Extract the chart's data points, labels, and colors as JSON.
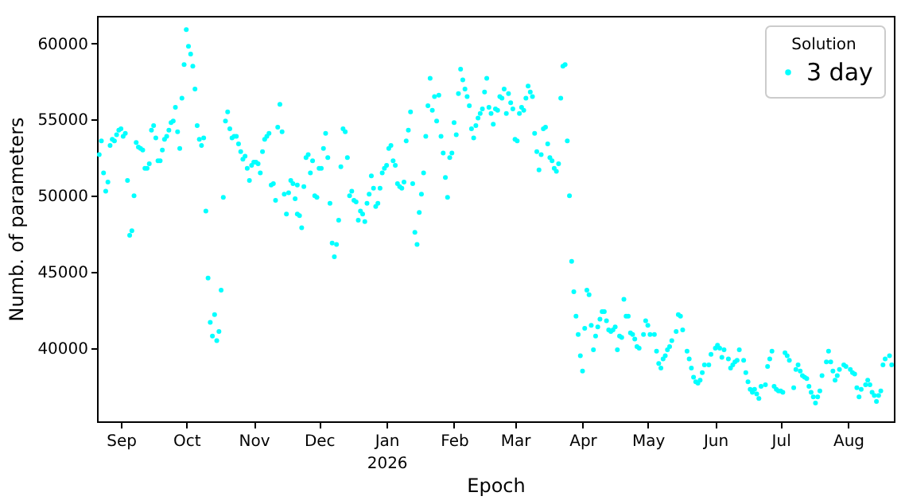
{
  "chart_data": {
    "type": "scatter",
    "xlabel": "Epoch",
    "ylabel": "Numb. of parameters",
    "legend_title": "Solution",
    "legend": "top right",
    "marker": "circle",
    "grid": false,
    "xlim": [
      "2025-08-21",
      "2026-08-22"
    ],
    "ylim": [
      35200,
      61800
    ],
    "xticks": [
      {
        "value": "2025-09-01",
        "label": "Sep"
      },
      {
        "value": "2025-10-01",
        "label": "Oct"
      },
      {
        "value": "2025-11-01",
        "label": "Nov"
      },
      {
        "value": "2025-12-01",
        "label": "Dec"
      },
      {
        "value": "2026-01-01",
        "label": "Jan\n2026"
      },
      {
        "value": "2026-02-01",
        "label": "Feb"
      },
      {
        "value": "2026-03-01",
        "label": "Mar"
      },
      {
        "value": "2026-04-01",
        "label": "Apr"
      },
      {
        "value": "2026-05-01",
        "label": "May"
      },
      {
        "value": "2026-06-01",
        "label": "Jun"
      },
      {
        "value": "2026-07-01",
        "label": "Jul"
      },
      {
        "value": "2026-08-01",
        "label": "Aug"
      }
    ],
    "yticks": [
      40000,
      45000,
      50000,
      55000,
      60000
    ],
    "series": [
      {
        "name": "3 day",
        "color": "#00ffff",
        "x": [
          "2025-08-22",
          "2025-08-23",
          "2025-08-24",
          "2025-08-25",
          "2025-08-26",
          "2025-08-27",
          "2025-08-28",
          "2025-08-29",
          "2025-08-30",
          "2025-08-31",
          "2025-09-01",
          "2025-09-02",
          "2025-09-03",
          "2025-09-04",
          "2025-09-05",
          "2025-09-06",
          "2025-09-07",
          "2025-09-08",
          "2025-09-09",
          "2025-09-10",
          "2025-09-11",
          "2025-09-12",
          "2025-09-13",
          "2025-09-14",
          "2025-09-15",
          "2025-09-16",
          "2025-09-17",
          "2025-09-18",
          "2025-09-19",
          "2025-09-20",
          "2025-09-21",
          "2025-09-22",
          "2025-09-23",
          "2025-09-24",
          "2025-09-25",
          "2025-09-26",
          "2025-09-27",
          "2025-09-28",
          "2025-09-29",
          "2025-09-30",
          "2025-10-01",
          "2025-10-02",
          "2025-10-03",
          "2025-10-04",
          "2025-10-05",
          "2025-10-06",
          "2025-10-07",
          "2025-10-08",
          "2025-10-09",
          "2025-10-10",
          "2025-10-11",
          "2025-10-12",
          "2025-10-13",
          "2025-10-14",
          "2025-10-15",
          "2025-10-16",
          "2025-10-17",
          "2025-10-18",
          "2025-10-19",
          "2025-10-20",
          "2025-10-21",
          "2025-10-22",
          "2025-10-23",
          "2025-10-24",
          "2025-10-25",
          "2025-10-26",
          "2025-10-27",
          "2025-10-28",
          "2025-10-29",
          "2025-10-30",
          "2025-10-31",
          "2025-11-01",
          "2025-11-02",
          "2025-11-03",
          "2025-11-04",
          "2025-11-05",
          "2025-11-06",
          "2025-11-07",
          "2025-11-08",
          "2025-11-09",
          "2025-11-10",
          "2025-11-11",
          "2025-11-12",
          "2025-11-13",
          "2025-11-14",
          "2025-11-15",
          "2025-11-16",
          "2025-11-17",
          "2025-11-18",
          "2025-11-19",
          "2025-11-20",
          "2025-11-21",
          "2025-11-21",
          "2025-11-22",
          "2025-11-23",
          "2025-11-24",
          "2025-11-25",
          "2025-11-26",
          "2025-11-27",
          "2025-11-28",
          "2025-11-29",
          "2025-11-30",
          "2025-12-01",
          "2025-12-02",
          "2025-12-03",
          "2025-12-04",
          "2025-12-05",
          "2025-12-06",
          "2025-12-07",
          "2025-12-08",
          "2025-12-09",
          "2025-12-10",
          "2025-12-11",
          "2025-12-12",
          "2025-12-13",
          "2025-12-14",
          "2025-12-15",
          "2025-12-16",
          "2025-12-17",
          "2025-12-18",
          "2025-12-19",
          "2025-12-20",
          "2025-12-21",
          "2025-12-22",
          "2025-12-23",
          "2025-12-24",
          "2025-12-25",
          "2025-12-26",
          "2025-12-27",
          "2025-12-28",
          "2025-12-29",
          "2025-12-30",
          "2025-12-31",
          "2026-01-01",
          "2026-01-02",
          "2026-01-03",
          "2026-01-04",
          "2026-01-05",
          "2026-01-06",
          "2026-01-07",
          "2026-01-08",
          "2026-01-09",
          "2026-01-10",
          "2026-01-11",
          "2026-01-12",
          "2026-01-13",
          "2026-01-14",
          "2026-01-15",
          "2026-01-16",
          "2026-01-17",
          "2026-01-18",
          "2026-01-19",
          "2026-01-20",
          "2026-01-21",
          "2026-01-22",
          "2026-01-23",
          "2026-01-24",
          "2026-01-25",
          "2026-01-26",
          "2026-01-27",
          "2026-01-28",
          "2026-01-29",
          "2026-01-30",
          "2026-01-31",
          "2026-02-01",
          "2026-02-02",
          "2026-02-03",
          "2026-02-04",
          "2026-02-05",
          "2026-02-06",
          "2026-02-07",
          "2026-02-08",
          "2026-02-09",
          "2026-02-10",
          "2026-02-11",
          "2026-02-12",
          "2026-02-13",
          "2026-02-14",
          "2026-02-15",
          "2026-02-16",
          "2026-02-17",
          "2026-02-18",
          "2026-02-19",
          "2026-02-20",
          "2026-02-21",
          "2026-02-22",
          "2026-02-23",
          "2026-02-24",
          "2026-02-25",
          "2026-02-26",
          "2026-02-27",
          "2026-02-28",
          "2026-03-01",
          "2026-03-02",
          "2026-03-03",
          "2026-03-04",
          "2026-03-05",
          "2026-03-06",
          "2026-03-07",
          "2026-03-08",
          "2026-03-09",
          "2026-03-10",
          "2026-03-11",
          "2026-03-12",
          "2026-03-13",
          "2026-03-14",
          "2026-03-15",
          "2026-03-16",
          "2026-03-17",
          "2026-03-18",
          "2026-03-19",
          "2026-03-20",
          "2026-03-21",
          "2026-03-22",
          "2026-03-23",
          "2026-03-24",
          "2026-03-25",
          "2026-03-26",
          "2026-03-27",
          "2026-03-28",
          "2026-03-29",
          "2026-03-30",
          "2026-03-31",
          "2026-04-01",
          "2026-04-02",
          "2026-04-03",
          "2026-04-04",
          "2026-04-05",
          "2026-04-06",
          "2026-04-07",
          "2026-04-08",
          "2026-04-09",
          "2026-04-10",
          "2026-04-11",
          "2026-04-12",
          "2026-04-13",
          "2026-04-14",
          "2026-04-15",
          "2026-04-16",
          "2026-04-17",
          "2026-04-18",
          "2026-04-19",
          "2026-04-20",
          "2026-04-21",
          "2026-04-22",
          "2026-04-23",
          "2026-04-24",
          "2026-04-25",
          "2026-04-26",
          "2026-04-27",
          "2026-04-29",
          "2026-04-30",
          "2026-05-01",
          "2026-05-02",
          "2026-05-04",
          "2026-05-05",
          "2026-05-06",
          "2026-05-07",
          "2026-05-08",
          "2026-05-09",
          "2026-05-10",
          "2026-05-11",
          "2026-05-12",
          "2026-05-14",
          "2026-05-15",
          "2026-05-16",
          "2026-05-17",
          "2026-05-19",
          "2026-05-20",
          "2026-05-21",
          "2026-05-22",
          "2026-05-23",
          "2026-05-24",
          "2026-05-25",
          "2026-05-26",
          "2026-05-27",
          "2026-05-29",
          "2026-05-30",
          "2026-06-01",
          "2026-06-02",
          "2026-06-03",
          "2026-06-04",
          "2026-06-05",
          "2026-06-07",
          "2026-06-08",
          "2026-06-09",
          "2026-06-10",
          "2026-06-11",
          "2026-06-12",
          "2026-06-14",
          "2026-06-15",
          "2026-06-16",
          "2026-06-17",
          "2026-06-18",
          "2026-06-19",
          "2026-06-20",
          "2026-06-21",
          "2026-06-22",
          "2026-06-24",
          "2026-06-25",
          "2026-06-26",
          "2026-06-27",
          "2026-06-28",
          "2026-06-29",
          "2026-06-30",
          "2026-07-01",
          "2026-07-02",
          "2026-07-03",
          "2026-07-04",
          "2026-07-05",
          "2026-07-07",
          "2026-07-08",
          "2026-07-09",
          "2026-07-10",
          "2026-07-11",
          "2026-07-12",
          "2026-07-13",
          "2026-07-14",
          "2026-07-15",
          "2026-07-16",
          "2026-07-17",
          "2026-07-18",
          "2026-07-19",
          "2026-07-20",
          "2026-07-22",
          "2026-07-23",
          "2026-07-24",
          "2026-07-25",
          "2026-07-26",
          "2026-07-27",
          "2026-07-28",
          "2026-07-30",
          "2026-07-31",
          "2026-08-02",
          "2026-08-03",
          "2026-08-04",
          "2026-08-05",
          "2026-08-06",
          "2026-08-07",
          "2026-08-09",
          "2026-08-10",
          "2026-08-11",
          "2026-08-12",
          "2026-08-13",
          "2026-08-14",
          "2026-08-15",
          "2026-08-16",
          "2026-08-17",
          "2026-08-18",
          "2026-08-20",
          "2026-08-21"
        ],
        "values": [
          52700,
          53600,
          51500,
          50300,
          50900,
          53300,
          53700,
          53600,
          54000,
          54300,
          54400,
          53900,
          54100,
          51000,
          47400,
          47700,
          50000,
          53500,
          53200,
          53100,
          53000,
          51800,
          51800,
          52100,
          54300,
          54600,
          53800,
          52300,
          52300,
          53000,
          53700,
          53900,
          54300,
          54800,
          54900,
          55800,
          54200,
          53100,
          56400,
          58600,
          60900,
          59800,
          59300,
          58500,
          57000,
          54600,
          53700,
          53300,
          53800,
          49000,
          44600,
          41700,
          40800,
          42200,
          40500,
          41100,
          43800,
          49900,
          54900,
          55500,
          54400,
          53800,
          53900,
          53900,
          53400,
          52900,
          52400,
          52600,
          51800,
          51000,
          52000,
          52200,
          52200,
          52100,
          51500,
          52900,
          53700,
          53900,
          54100,
          50700,
          50800,
          49700,
          54500,
          56000,
          54200,
          50100,
          48800,
          50200,
          51000,
          50800,
          49800,
          50700,
          48800,
          48700,
          47900,
          50600,
          52500,
          52700,
          51500,
          52300,
          50000,
          49900,
          51800,
          51800,
          53100,
          54100,
          52500,
          49500,
          46900,
          46000,
          46800,
          48400,
          51900,
          54400,
          54200,
          52500,
          50000,
          50300,
          49700,
          49600,
          48400,
          49000,
          48800,
          48300,
          49500,
          50100,
          51300,
          50500,
          49300,
          49500,
          50500,
          51500,
          51800,
          52000,
          53100,
          53300,
          52300,
          52000,
          50800,
          50600,
          50500,
          50900,
          53600,
          54300,
          55500,
          50800,
          47600,
          46800,
          48900,
          50100,
          51500,
          53900,
          55900,
          57700,
          55600,
          56500,
          54900,
          56600,
          53900,
          52800,
          51200,
          49900,
          52500,
          52800,
          54800,
          54000,
          56700,
          58300,
          57600,
          57000,
          56500,
          55900,
          54400,
          53800,
          54600,
          55100,
          55400,
          55700,
          56800,
          57700,
          55800,
          55400,
          54700,
          55700,
          55600,
          56500,
          56400,
          57000,
          55400,
          56700,
          56100,
          55700,
          53700,
          53600,
          55400,
          55800,
          55600,
          56400,
          57200,
          56800,
          56500,
          54100,
          52900,
          51700,
          52700,
          54400,
          54500,
          53400,
          52500,
          52300,
          51800,
          51600,
          52100,
          56400,
          58500,
          58600,
          53600,
          50000,
          45700,
          43700,
          42100,
          40900,
          39500,
          38500,
          41300,
          43800,
          43500,
          41500,
          39900,
          40800,
          41400,
          41900,
          42400,
          42400,
          41800,
          41200,
          41100,
          41200,
          41400,
          39900,
          40800,
          40700,
          43200,
          42100,
          42100,
          41000,
          40900,
          40600,
          40100,
          40000,
          40900,
          41800,
          41500,
          40900,
          40900,
          39800,
          39000,
          38700,
          39300,
          39500,
          39900,
          40100,
          40500,
          41100,
          42200,
          42100,
          41200,
          39800,
          39300,
          38700,
          38100,
          37800,
          37700,
          37900,
          38400,
          38900,
          38900,
          39600,
          40000,
          40200,
          40000,
          39400,
          39900,
          39300,
          38700,
          38900,
          39100,
          39200,
          39900,
          39200,
          38400,
          37800,
          37300,
          37100,
          37300,
          37000,
          36700,
          37500,
          37600,
          38800,
          39300,
          39800,
          37500,
          37300,
          37200,
          37200,
          37100,
          39700,
          39500,
          39200,
          37400,
          38600,
          38900,
          38500,
          38200,
          38100,
          38000,
          37500,
          37100,
          36800,
          36400,
          36800,
          37200,
          38200,
          39100,
          39800,
          39100,
          38500,
          37900,
          38200,
          38600,
          38900,
          38800,
          38600,
          38400,
          38300,
          37400,
          36800,
          37300,
          37600,
          37900,
          37600,
          37100,
          36900,
          36500,
          36900,
          37200,
          38900,
          39300,
          39500,
          38900
        ]
      }
    ]
  }
}
